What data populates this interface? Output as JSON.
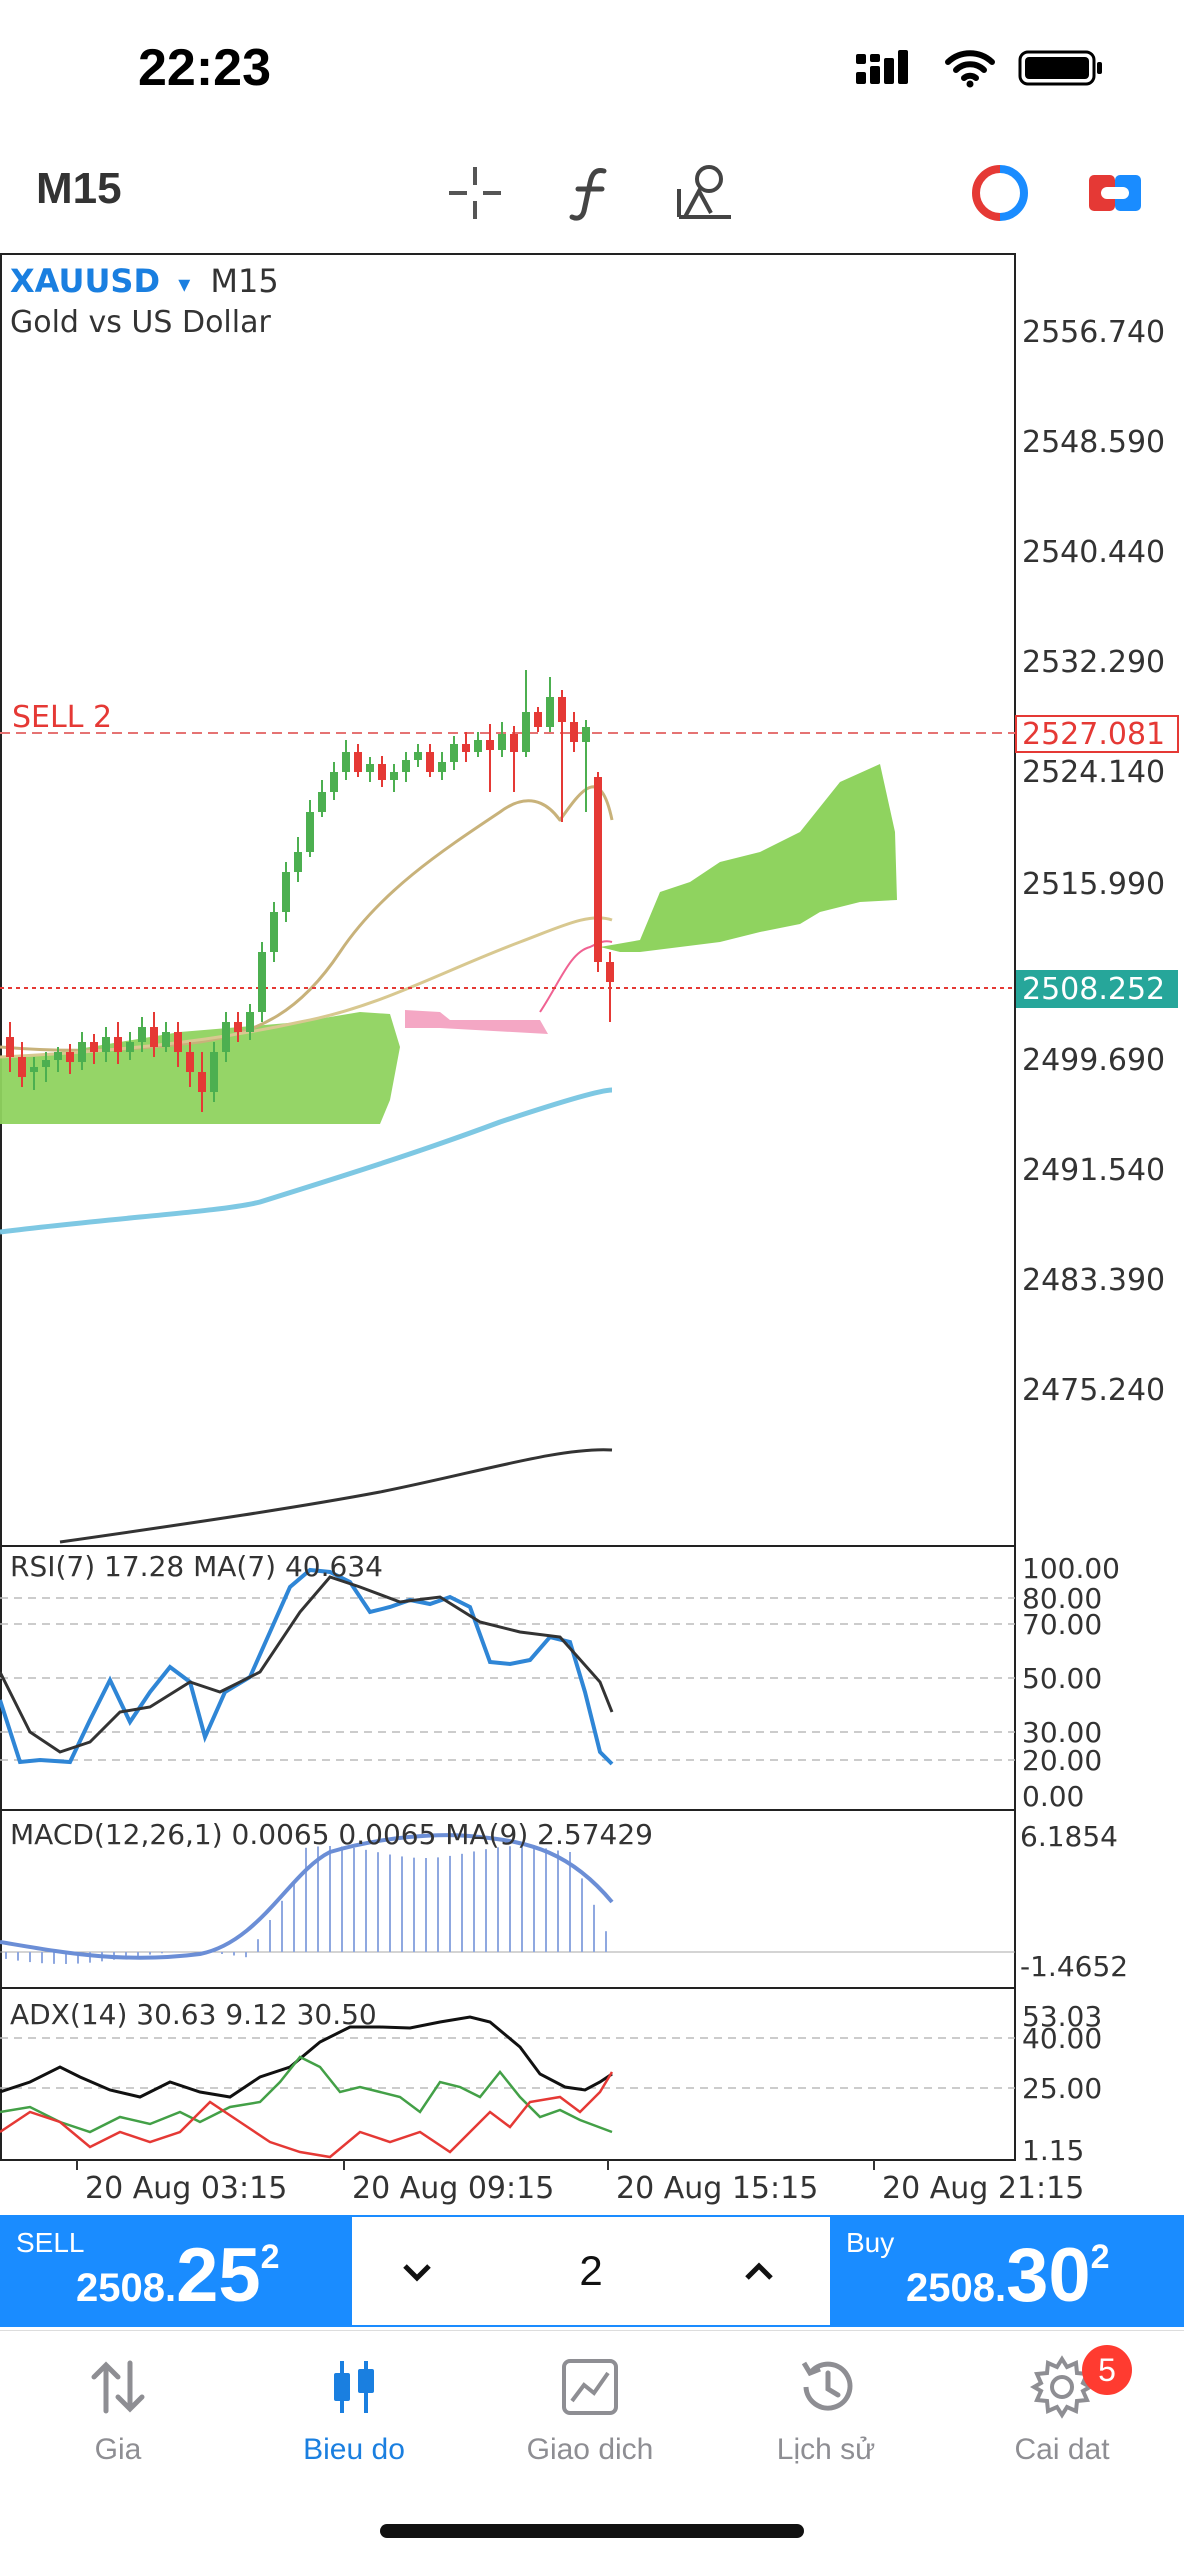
{
  "status": {
    "time": "22:23"
  },
  "toolbar": {
    "timeframe": "M15",
    "icons": [
      "crosshair-icon",
      "function-icon",
      "objects-icon",
      "indicator-toggle-icon",
      "trade-toggle-icon"
    ]
  },
  "chart": {
    "symbol": "XAUUSD",
    "symbol_arrow": "▾",
    "timeframe": "M15",
    "description": "Gold vs US Dollar",
    "price_levels": [
      "2556.740",
      "2548.590",
      "2540.440",
      "2532.290",
      "2524.140",
      "2515.990",
      "2508.252",
      "2499.690",
      "2491.540",
      "2483.390",
      "2475.240"
    ],
    "order_line": {
      "label": "SELL 2",
      "price": "2527.081",
      "color": "#e53935"
    },
    "current_price": {
      "value": "2508.252",
      "color": "#26a69a"
    },
    "time_labels": [
      "20 Aug 03:15",
      "20 Aug 09:15",
      "20 Aug 15:15",
      "20 Aug 21:15"
    ]
  },
  "rsi": {
    "label": "RSI(7) 17.28 MA(7) 40.634",
    "levels": [
      "100.00",
      "80.00",
      "70.00",
      "50.00",
      "30.00",
      "20.00",
      "0.00"
    ]
  },
  "macd": {
    "label": "MACD(12,26,1) 0.0065 0.0065 MA(9) 2.57429",
    "levels": [
      "6.1854",
      "-1.4652"
    ]
  },
  "adx": {
    "label": "ADX(14) 30.63 9.12 30.50",
    "levels": [
      "53.03",
      "40.00",
      "25.00",
      "1.15"
    ]
  },
  "trade": {
    "sell_label": "SELL",
    "sell_price_small": "2508.",
    "sell_price_big": "25",
    "sell_price_sup": "2",
    "buy_label": "Buy",
    "buy_price_small": "2508.",
    "buy_price_big": "30",
    "buy_price_sup": "2",
    "lot": "2"
  },
  "nav": {
    "items": [
      {
        "label": "Gia",
        "icon": "quotes-arrows-icon"
      },
      {
        "label": "Bieu do",
        "icon": "chart-candles-icon"
      },
      {
        "label": "Giao dich",
        "icon": "trade-chart-icon"
      },
      {
        "label": "Lịch sử",
        "icon": "history-clock-icon"
      },
      {
        "label": "Cai dat",
        "icon": "settings-gear-icon"
      }
    ],
    "badge": "5"
  },
  "colors": {
    "accent": "#1a8cff",
    "bull": "#4caf50",
    "bear": "#e53935",
    "cloud": "#8fd35f",
    "cloud_bear": "#f4a7c4"
  }
}
